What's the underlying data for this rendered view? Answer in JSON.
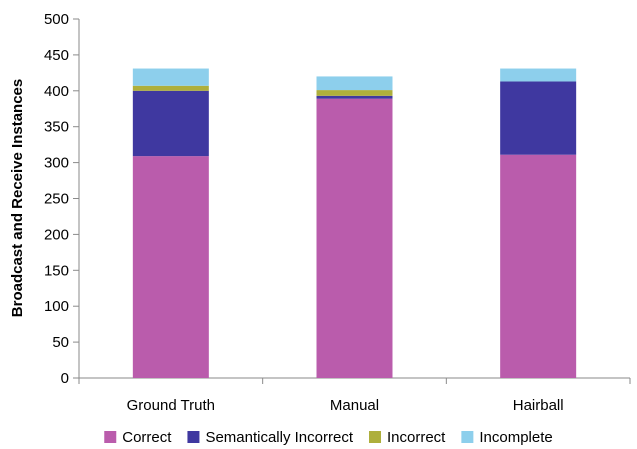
{
  "chart_data": {
    "type": "bar",
    "stacked": true,
    "title": "",
    "xlabel": "",
    "ylabel": "Broadcast and Receive Instances",
    "ylim": [
      0,
      500
    ],
    "yticks": [
      0,
      50,
      100,
      150,
      200,
      250,
      300,
      350,
      400,
      450,
      500
    ],
    "grid": false,
    "legend_position": "bottom",
    "categories": [
      "Ground Truth",
      "Manual",
      "Hairball"
    ],
    "series": [
      {
        "name": "Correct",
        "color": "#BA5CAC",
        "values": [
          309,
          389,
          311
        ]
      },
      {
        "name": "Semantically Incorrect",
        "color": "#3F38A0",
        "values": [
          91,
          4,
          102
        ]
      },
      {
        "name": "Incorrect",
        "color": "#AEAF3C",
        "values": [
          7,
          8,
          0
        ]
      },
      {
        "name": "Incomplete",
        "color": "#8DCFEC",
        "values": [
          24,
          19,
          18
        ]
      }
    ]
  }
}
